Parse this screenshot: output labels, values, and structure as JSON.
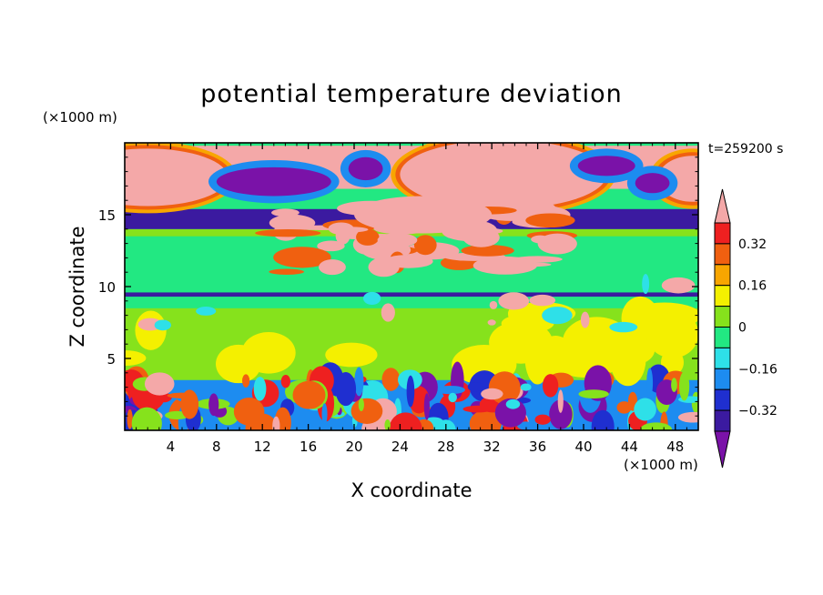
{
  "chart_data": {
    "type": "heatmap",
    "title": "potential temperature deviation",
    "time_label": "t=259200 s",
    "xlabel": "X coordinate",
    "ylabel": "Z coordinate",
    "x_unit": "(×1000 m)",
    "y_unit": "(×1000 m)",
    "xlim": [
      0,
      50
    ],
    "ylim": [
      0,
      20
    ],
    "x_ticks": [
      4,
      8,
      12,
      16,
      20,
      24,
      28,
      32,
      36,
      40,
      44,
      48
    ],
    "y_ticks": [
      5,
      10,
      15
    ],
    "colorbar": {
      "levels": [
        -0.4,
        -0.32,
        -0.24,
        -0.16,
        -0.08,
        0,
        0.08,
        0.16,
        0.24,
        0.32,
        0.4
      ],
      "labeled_levels": [
        "0.32",
        "0.16",
        "0",
        "−0.16",
        "−0.32"
      ],
      "colors": [
        "#7a12a8",
        "#3b1aa0",
        "#1f2fd0",
        "#1d8cf0",
        "#2ee0e8",
        "#22e882",
        "#86e21c",
        "#f4f000",
        "#f8a600",
        "#f06010",
        "#ee2020",
        "#f4a8a8"
      ],
      "extend": "both"
    },
    "field_bands": [
      {
        "z": [
          0.0,
          3.5
        ],
        "level": "mixed"
      },
      {
        "z": [
          3.5,
          8.5
        ],
        "level": 0.04
      },
      {
        "z": [
          8.5,
          9.3
        ],
        "level": -0.06
      },
      {
        "z": [
          9.3,
          9.6
        ],
        "level": -0.36
      },
      {
        "z": [
          9.6,
          13.5
        ],
        "level": -0.06
      },
      {
        "z": [
          13.5,
          14.0
        ],
        "level": 0.03
      },
      {
        "z": [
          14.0,
          15.4
        ],
        "level": -0.4
      },
      {
        "z": [
          15.4,
          16.8
        ],
        "level": -0.08
      },
      {
        "z": [
          16.8,
          19.8
        ],
        "level": 0.4
      }
    ]
  }
}
